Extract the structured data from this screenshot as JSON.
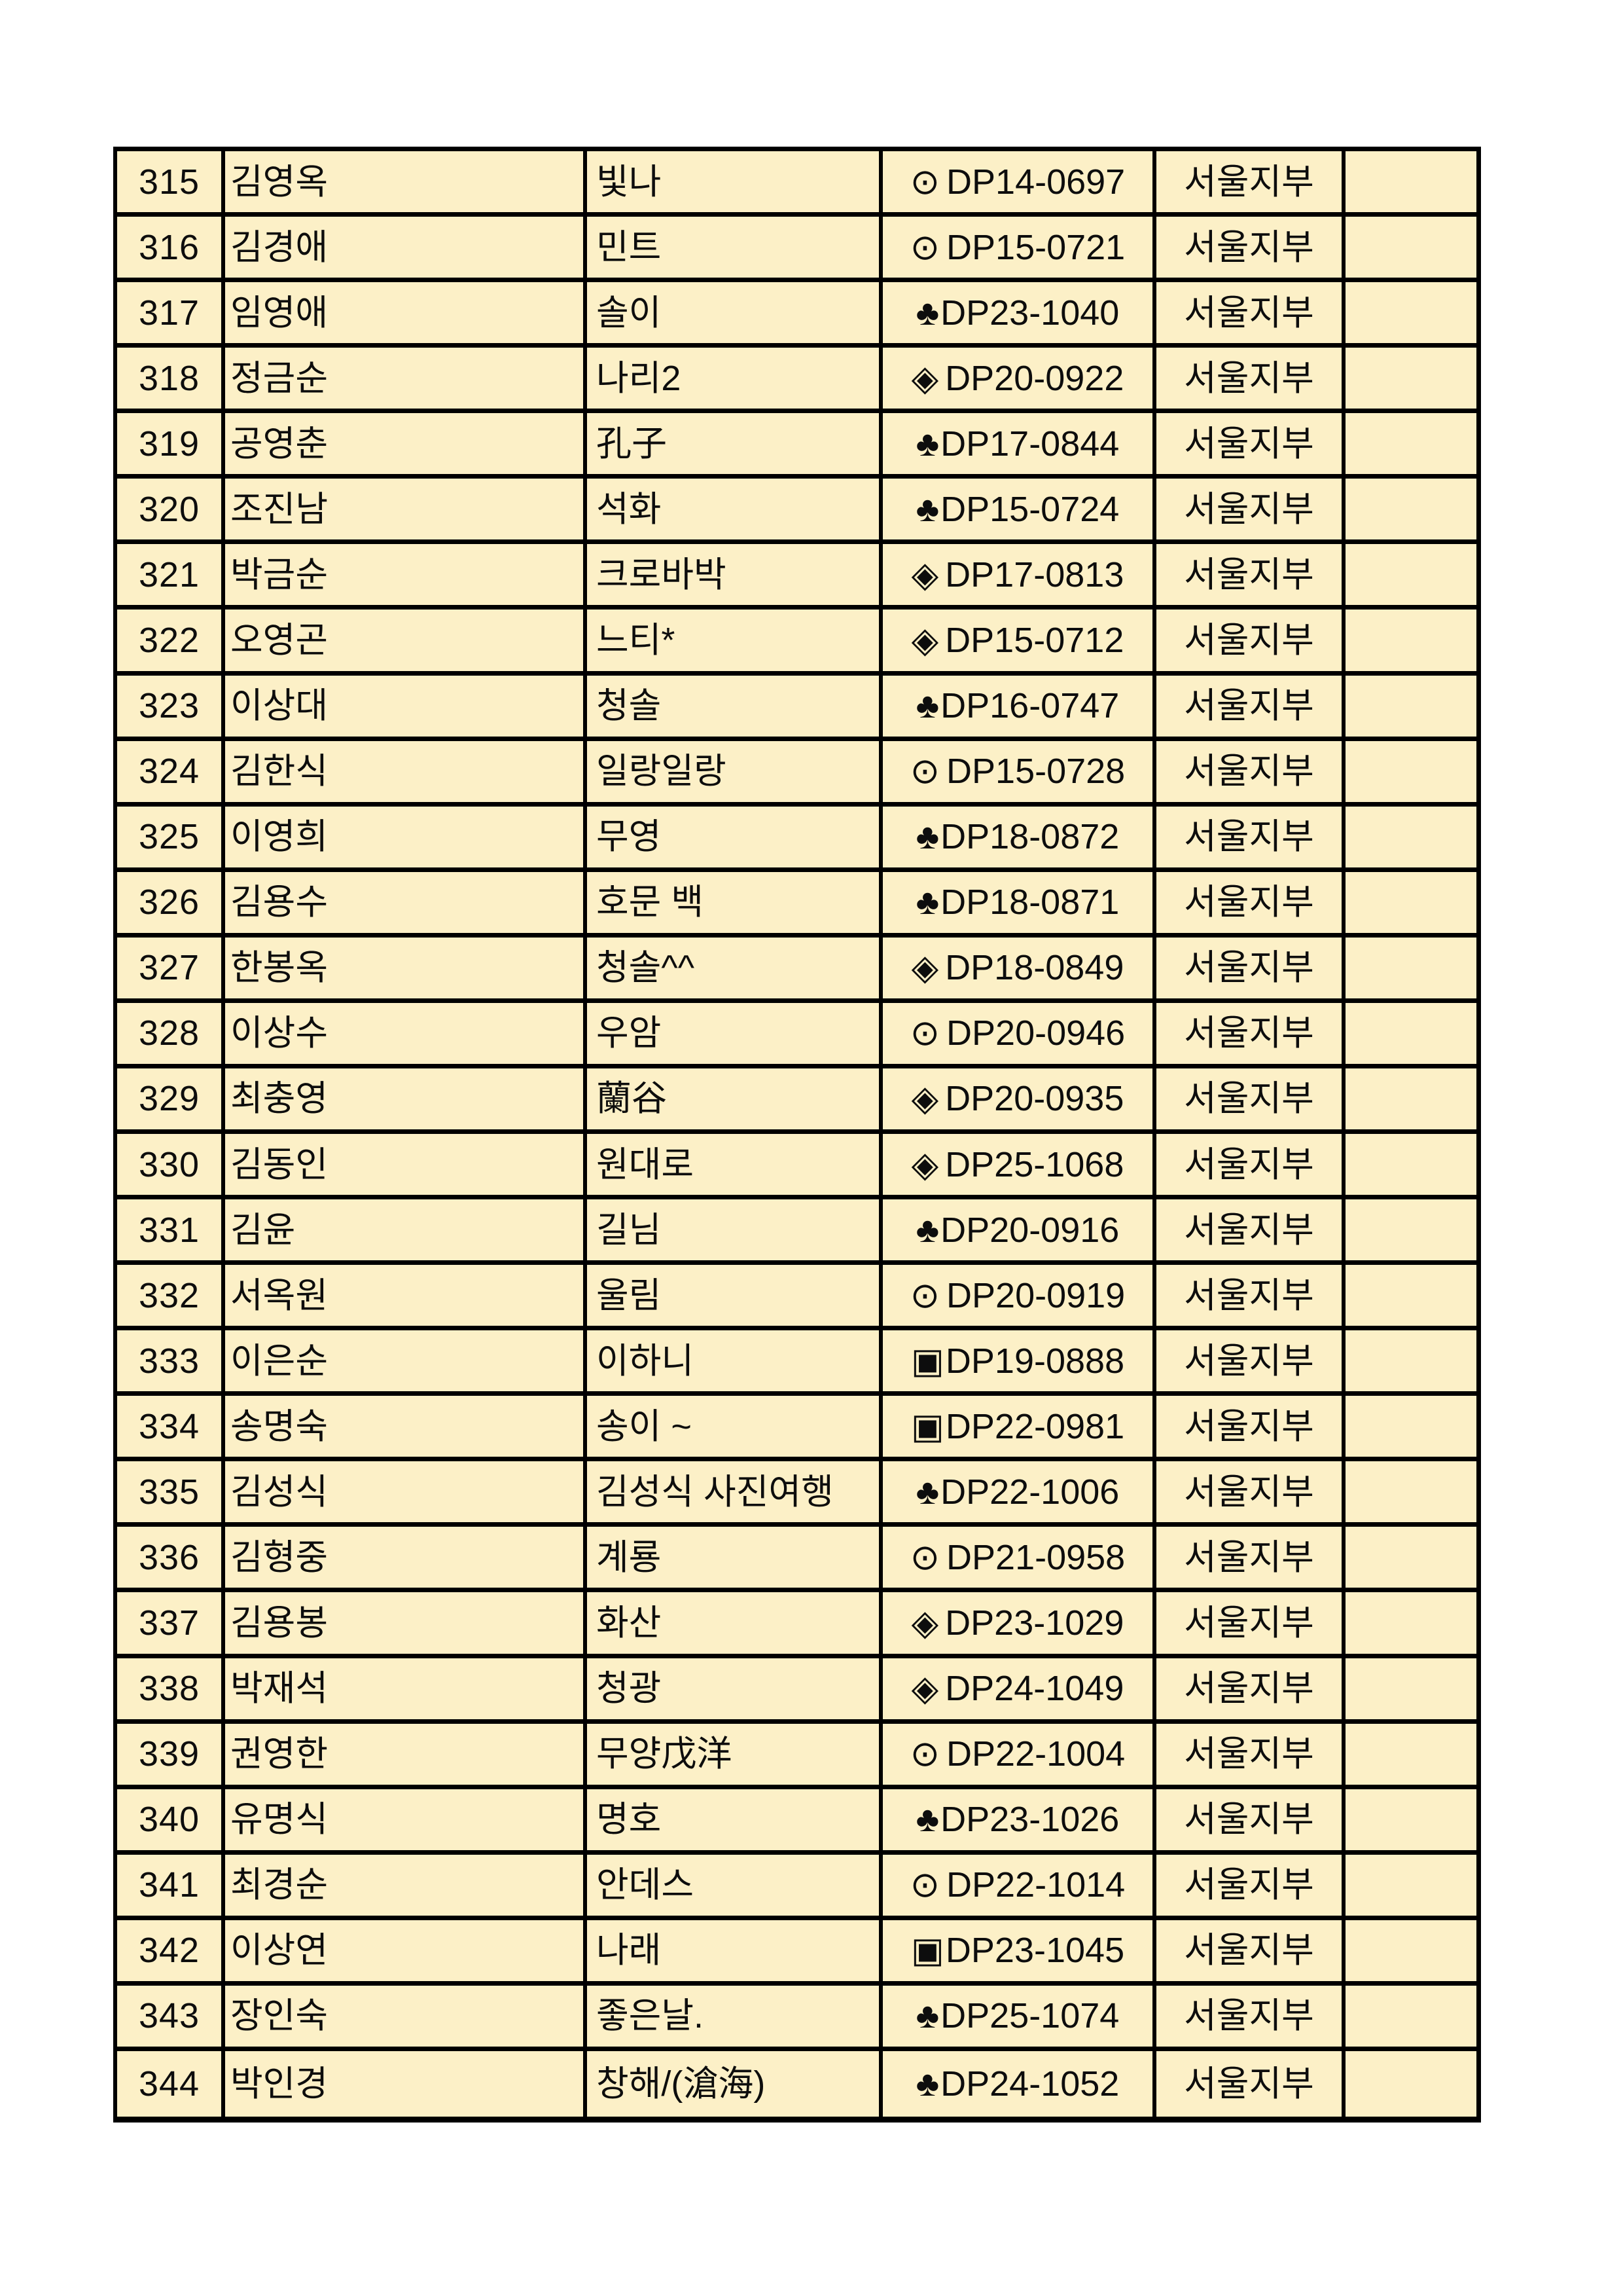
{
  "style": {
    "page_bg": "#FFFFFF",
    "cell_bg": "#FCF0C7",
    "border_color": "#000000",
    "text_color": "#0D0D0D"
  },
  "table": {
    "column_keys": [
      "no",
      "name",
      "nickname",
      "code",
      "branch",
      "blank"
    ],
    "rows": [
      {
        "no": "315",
        "name": "김영옥",
        "nickname": "빛나",
        "symbol": "⊙",
        "code": "DP14-0697",
        "branch": "서울지부"
      },
      {
        "no": "316",
        "name": "김경애",
        "nickname": "민트",
        "symbol": "⊙",
        "code": "DP15-0721",
        "branch": "서울지부"
      },
      {
        "no": "317",
        "name": "임영애",
        "nickname": "솔이",
        "symbol": "♣",
        "code": "DP23-1040",
        "branch": "서울지부"
      },
      {
        "no": "318",
        "name": "정금순",
        "nickname": "나리2",
        "symbol": "◈",
        "code": "DP20-0922",
        "branch": "서울지부"
      },
      {
        "no": "319",
        "name": "공영춘",
        "nickname": "孔子",
        "symbol": "♣",
        "code": "DP17-0844",
        "branch": "서울지부"
      },
      {
        "no": "320",
        "name": "조진남",
        "nickname": "석화",
        "symbol": "♣",
        "code": "DP15-0724",
        "branch": "서울지부"
      },
      {
        "no": "321",
        "name": "박금순",
        "nickname": "크로바박",
        "symbol": "◈",
        "code": "DP17-0813",
        "branch": "서울지부"
      },
      {
        "no": "322",
        "name": "오영곤",
        "nickname": "느티*",
        "symbol": "◈",
        "code": "DP15-0712",
        "branch": "서울지부"
      },
      {
        "no": "323",
        "name": "이상대",
        "nickname": "청솔",
        "symbol": "♣",
        "code": "DP16-0747",
        "branch": "서울지부"
      },
      {
        "no": "324",
        "name": "김한식",
        "nickname": "일랑일랑",
        "symbol": "⊙",
        "code": "DP15-0728",
        "branch": "서울지부"
      },
      {
        "no": "325",
        "name": "이영희",
        "nickname": "무영",
        "symbol": "♣",
        "code": "DP18-0872",
        "branch": "서울지부"
      },
      {
        "no": "326",
        "name": "김용수",
        "nickname": "호문 백",
        "symbol": "♣",
        "code": "DP18-0871",
        "branch": "서울지부"
      },
      {
        "no": "327",
        "name": "한봉옥",
        "nickname": "청솔^^",
        "symbol": "◈",
        "code": "DP18-0849",
        "branch": "서울지부"
      },
      {
        "no": "328",
        "name": "이상수",
        "nickname": "우암",
        "symbol": "⊙",
        "code": "DP20-0946",
        "branch": "서울지부"
      },
      {
        "no": "329",
        "name": "최충영",
        "nickname": "蘭谷",
        "symbol": "◈",
        "code": "DP20-0935",
        "branch": "서울지부"
      },
      {
        "no": "330",
        "name": "김동인",
        "nickname": "원대로",
        "symbol": "◈",
        "code": "DP25-1068",
        "branch": "서울지부"
      },
      {
        "no": "331",
        "name": "김윤",
        "nickname": "길님",
        "symbol": "♣",
        "code": "DP20-0916",
        "branch": "서울지부"
      },
      {
        "no": "332",
        "name": "서옥원",
        "nickname": "울림",
        "symbol": "⊙",
        "code": "DP20-0919",
        "branch": "서울지부"
      },
      {
        "no": "333",
        "name": "이은순",
        "nickname": "이하니",
        "symbol": "▣",
        "code": "DP19-0888",
        "branch": "서울지부"
      },
      {
        "no": "334",
        "name": "송명숙",
        "nickname": "송이 ~",
        "symbol": "▣",
        "code": "DP22-0981",
        "branch": "서울지부"
      },
      {
        "no": "335",
        "name": "김성식",
        "nickname": "김성식 사진여행",
        "symbol": "♣",
        "code": "DP22-1006",
        "branch": "서울지부"
      },
      {
        "no": "336",
        "name": "김형중",
        "nickname": "계룡",
        "symbol": "⊙",
        "code": "DP21-0958",
        "branch": "서울지부"
      },
      {
        "no": "337",
        "name": "김용봉",
        "nickname": "화산",
        "symbol": "◈",
        "code": "DP23-1029",
        "branch": "서울지부"
      },
      {
        "no": "338",
        "name": "박재석",
        "nickname": "청광",
        "symbol": "◈",
        "code": "DP24-1049",
        "branch": "서울지부"
      },
      {
        "no": "339",
        "name": "권영한",
        "nickname": "무양戊洋",
        "symbol": "⊙",
        "code": "DP22-1004",
        "branch": "서울지부"
      },
      {
        "no": "340",
        "name": "유명식",
        "nickname": "명호",
        "symbol": "♣",
        "code": "DP23-1026",
        "branch": "서울지부"
      },
      {
        "no": "341",
        "name": "최경순",
        "nickname": "안데스",
        "symbol": "⊙",
        "code": "DP22-1014",
        "branch": "서울지부"
      },
      {
        "no": "342",
        "name": "이상연",
        "nickname": "나래",
        "symbol": "▣",
        "code": "DP23-1045",
        "branch": "서울지부"
      },
      {
        "no": "343",
        "name": "장인숙",
        "nickname": "좋은날.",
        "symbol": "♣",
        "code": "DP25-1074",
        "branch": "서울지부"
      },
      {
        "no": "344",
        "name": "박인경",
        "nickname": "창해/(滄海)",
        "symbol": "♣",
        "code": "DP24-1052",
        "branch": "서울지부"
      }
    ]
  }
}
